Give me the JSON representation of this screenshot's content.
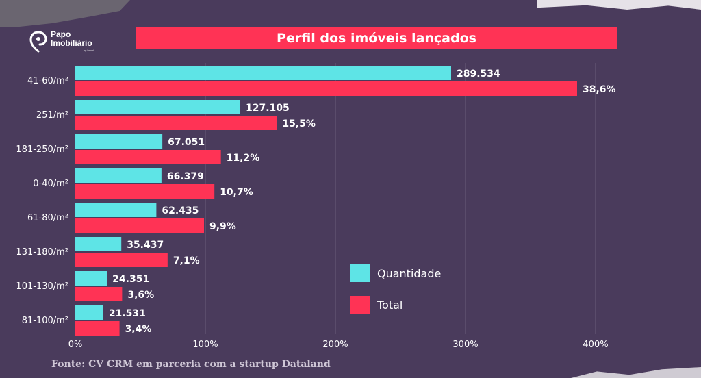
{
  "brand": {
    "line1": "Papo",
    "line2": "Imobiliário",
    "sub": "by Imobil"
  },
  "title": "Perfil dos imóveis lançados",
  "source": "Fonte: CV CRM em parceria com a startup Dataland",
  "legend": {
    "quantidade": "Quantidade",
    "total": "Total"
  },
  "colors": {
    "background": "#4a3b5c",
    "quantidade": "#5ee4e6",
    "total": "#ff3355",
    "title_bar": "#ff3355"
  },
  "chart_data": {
    "type": "bar",
    "orientation": "horizontal",
    "title": "Perfil dos imóveis lançados",
    "categories": [
      "41-60/m²",
      "251/m²",
      "181-250/m²",
      "0-40/m²",
      "61-80/m²",
      "131-180/m²",
      "101-130/m²",
      "81-100/m²"
    ],
    "x_ticks": [
      "0%",
      "100%",
      "200%",
      "300%",
      "400%"
    ],
    "xlim": [
      0,
      400
    ],
    "grid": true,
    "legend_position": "bottom-right",
    "series": [
      {
        "name": "Quantidade",
        "color": "#5ee4e6",
        "values": [
          289534,
          127105,
          67051,
          66379,
          62435,
          35437,
          24351,
          21531
        ],
        "labels": [
          "289.534",
          "127.105",
          "67.051",
          "66.379",
          "62.435",
          "35.437",
          "24.351",
          "21.531"
        ]
      },
      {
        "name": "Total",
        "color": "#ff3355",
        "values": [
          38.6,
          15.5,
          11.2,
          10.7,
          9.9,
          7.1,
          3.6,
          3.4
        ],
        "labels": [
          "38,6%",
          "15,5%",
          "11,2%",
          "10,7%",
          "9,9%",
          "7,1%",
          "3,6%",
          "3,4%"
        ]
      }
    ]
  }
}
